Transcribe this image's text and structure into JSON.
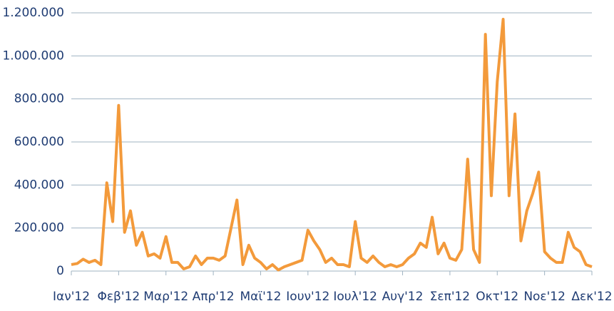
{
  "chart_data": {
    "type": "line",
    "categories": [
      "Ιαν'12",
      null,
      null,
      null,
      null,
      null,
      null,
      null,
      "Φεβ'12",
      null,
      null,
      null,
      null,
      null,
      null,
      null,
      "Μαρ'12",
      null,
      null,
      null,
      null,
      null,
      null,
      null,
      "Απρ'12",
      null,
      null,
      null,
      null,
      null,
      null,
      null,
      "Μαϊ'12",
      null,
      null,
      null,
      null,
      null,
      null,
      null,
      "Ιουν'12",
      null,
      null,
      null,
      null,
      null,
      null,
      null,
      "Ιουλ'12",
      null,
      null,
      null,
      null,
      null,
      null,
      null,
      "Αυγ'12",
      null,
      null,
      null,
      null,
      null,
      null,
      null,
      "Σεπ'12",
      null,
      null,
      null,
      null,
      null,
      null,
      null,
      "Οκτ'12",
      null,
      null,
      null,
      null,
      null,
      null,
      null,
      "Νοε'12",
      null,
      null,
      null,
      null,
      null,
      null,
      null,
      "Δεκ'12"
    ],
    "series": [
      {
        "color": "#f39a3b",
        "values": [
          30000,
          35000,
          55000,
          40000,
          50000,
          30000,
          410000,
          230000,
          770000,
          180000,
          280000,
          120000,
          180000,
          70000,
          80000,
          60000,
          160000,
          40000,
          40000,
          10000,
          20000,
          70000,
          30000,
          60000,
          60000,
          50000,
          70000,
          200000,
          330000,
          30000,
          120000,
          60000,
          40000,
          10000,
          30000,
          5000,
          20000,
          30000,
          40000,
          50000,
          190000,
          140000,
          100000,
          40000,
          60000,
          30000,
          30000,
          20000,
          230000,
          60000,
          40000,
          70000,
          40000,
          20000,
          30000,
          20000,
          30000,
          60000,
          80000,
          130000,
          110000,
          250000,
          80000,
          130000,
          60000,
          50000,
          100000,
          520000,
          100000,
          40000,
          1100000,
          350000,
          880000,
          1170000,
          350000,
          730000,
          140000,
          280000,
          360000,
          460000,
          90000,
          60000,
          40000,
          40000,
          180000,
          110000,
          90000,
          30000,
          20000
        ]
      }
    ],
    "ylim": [
      0,
      1200000
    ],
    "yticks": [
      0,
      {
        "value": 200000,
        "label": "200.000"
      },
      {
        "value": 400000,
        "label": "400.000"
      },
      {
        "value": 600000,
        "label": "600.000"
      },
      {
        "value": 800000,
        "label": "800.000"
      },
      {
        "value": 1000000,
        "label": "1.000.000"
      },
      {
        "value": 1200000,
        "label": "1.200.000"
      }
    ],
    "grid": true
  }
}
